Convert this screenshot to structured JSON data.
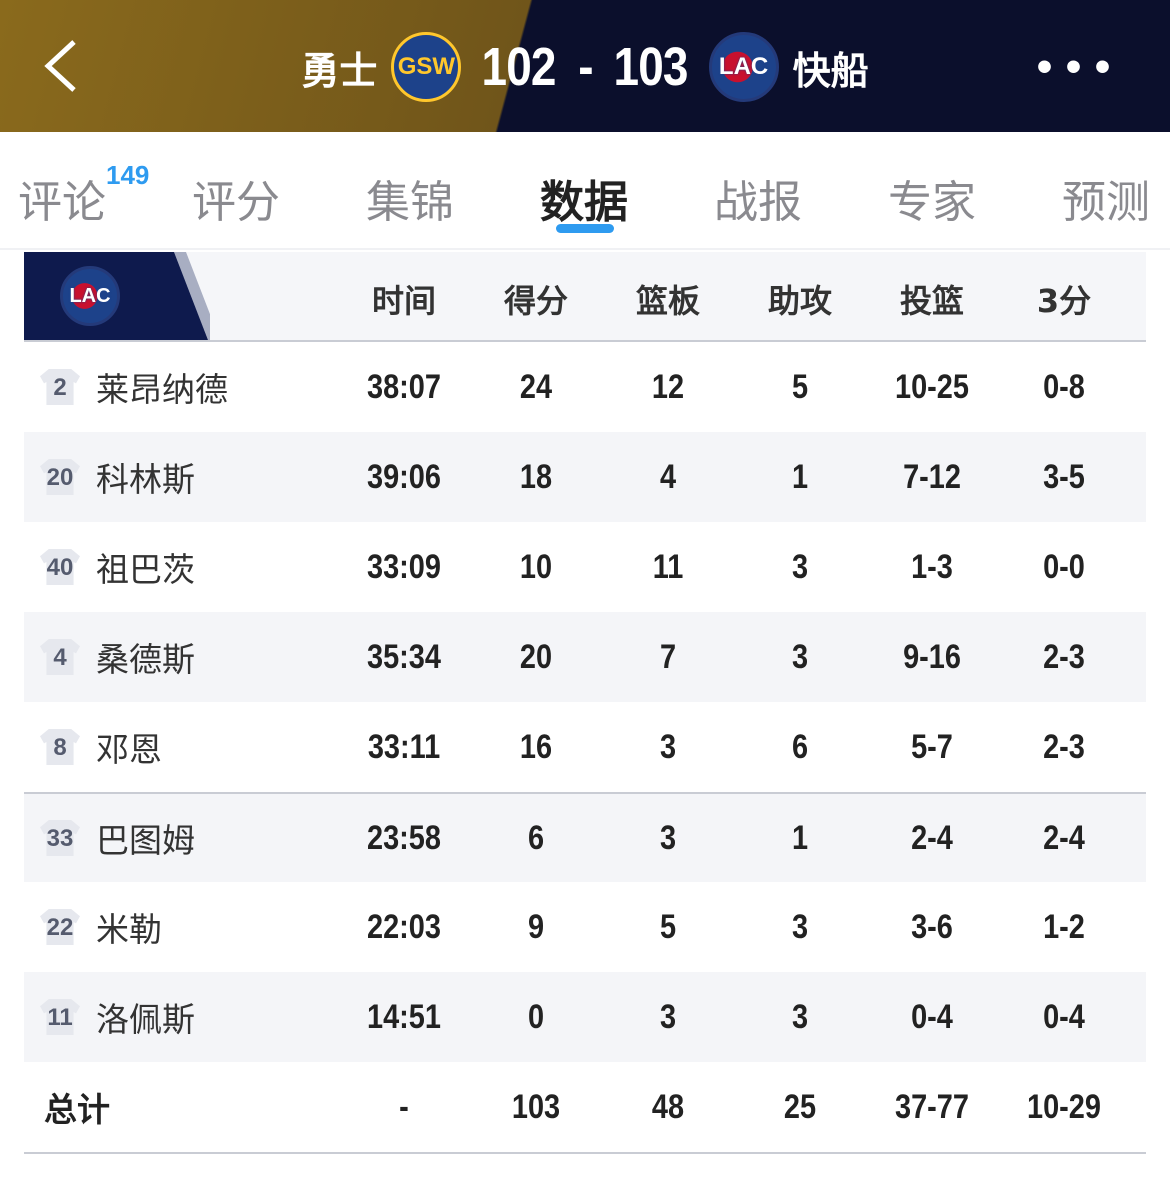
{
  "header": {
    "home_team": "勇士",
    "home_abbr": "GSW",
    "home_score": "102",
    "separator": "-",
    "away_score": "103",
    "away_abbr": "LAC",
    "away_team": "快船",
    "colors": {
      "home": "#8a6a1c",
      "away": "#0b0f2c"
    }
  },
  "tabs": [
    {
      "label": "评论",
      "badge": "149"
    },
    {
      "label": "评分"
    },
    {
      "label": "集锦"
    },
    {
      "label": "数据",
      "active": true
    },
    {
      "label": "战报"
    },
    {
      "label": "专家"
    },
    {
      "label": "预测"
    }
  ],
  "accent": "#2e9bf0",
  "table": {
    "team_abbr": "LAC",
    "columns": [
      "时间",
      "得分",
      "篮板",
      "助攻",
      "投篮",
      "3分"
    ],
    "players": [
      {
        "no": "2",
        "name": "莱昂纳德",
        "stats": [
          "38:07",
          "24",
          "12",
          "5",
          "10-25",
          "0-8"
        ]
      },
      {
        "no": "20",
        "name": "科林斯",
        "stats": [
          "39:06",
          "18",
          "4",
          "1",
          "7-12",
          "3-5"
        ]
      },
      {
        "no": "40",
        "name": "祖巴茨",
        "stats": [
          "33:09",
          "10",
          "11",
          "3",
          "1-3",
          "0-0"
        ]
      },
      {
        "no": "4",
        "name": "桑德斯",
        "stats": [
          "35:34",
          "20",
          "7",
          "3",
          "9-16",
          "2-3"
        ]
      },
      {
        "no": "8",
        "name": "邓恩",
        "stats": [
          "33:11",
          "16",
          "3",
          "6",
          "5-7",
          "2-3"
        ]
      },
      {
        "no": "33",
        "name": "巴图姆",
        "stats": [
          "23:58",
          "6",
          "3",
          "1",
          "2-4",
          "2-4"
        ]
      },
      {
        "no": "22",
        "name": "米勒",
        "stats": [
          "22:03",
          "9",
          "5",
          "3",
          "3-6",
          "1-2"
        ]
      },
      {
        "no": "11",
        "name": "洛佩斯",
        "stats": [
          "14:51",
          "0",
          "3",
          "3",
          "0-4",
          "0-4"
        ]
      }
    ],
    "total": {
      "label": "总计",
      "stats": [
        "-",
        "103",
        "48",
        "25",
        "37-77",
        "10-29"
      ]
    }
  }
}
